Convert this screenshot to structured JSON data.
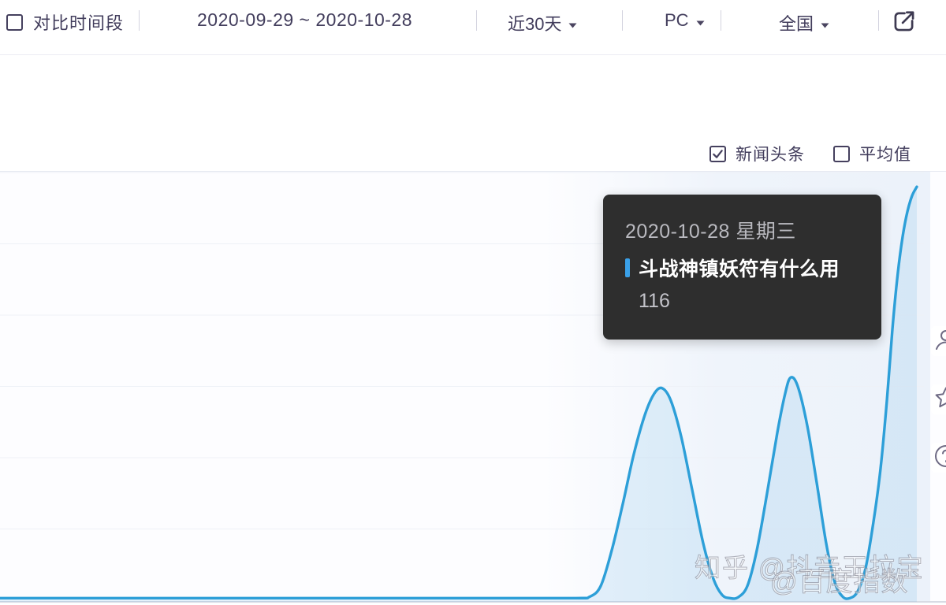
{
  "topbar": {
    "compare_label": "对比时间段",
    "compare_checked": false,
    "date_range": "2020-09-29 ~ 2020-10-28",
    "duration_dropdown": "近30天",
    "platform_dropdown": "PC",
    "region_dropdown": "全国"
  },
  "legend": {
    "news_label": "新闻头条",
    "news_checked": true,
    "average_label": "平均值",
    "average_checked": false
  },
  "tooltip": {
    "date": "2020-10-28 星期三",
    "keyword": "斗战神镇妖符有什么用",
    "value": "116",
    "marker_color": "#3aa0e8"
  },
  "watermarks": {
    "primary": "知乎 @抖音王拉宝",
    "secondary": "@百度指数"
  },
  "colors": {
    "line": "#2d9fd8",
    "area": "rgba(58,160,221,0.13)",
    "grid": "#eef1f7",
    "axis": "#d8dbe4",
    "tint": "rgba(222,233,246,0.55)",
    "tooltip_bg": "#2e2e2e",
    "ui_text": "#423d5c"
  },
  "chart_data": {
    "type": "line",
    "x_range": [
      "2020-09-29",
      "2020-10-28"
    ],
    "x_label": "",
    "y_label": "",
    "ylim": [
      0,
      120
    ],
    "grid_step": 20,
    "grid_on": true,
    "legend_position": "top-right",
    "hovered_point": {
      "date": "2020-10-28 星期三",
      "series": "斗战神镇妖符有什么用",
      "value": 116
    },
    "series": [
      {
        "name": "斗战神镇妖符有什么用",
        "color": "#2d9fd8",
        "peaks": [
          {
            "approx_date": "2020-10-20",
            "value": 59
          },
          {
            "approx_date": "2020-10-24",
            "value": 63
          },
          {
            "date": "2020-10-28",
            "value": 116
          }
        ],
        "samples": [
          [
            0,
            0.6
          ],
          [
            200,
            0.6
          ],
          [
            420,
            0.6
          ],
          [
            620,
            0.6
          ],
          [
            730,
            0.6
          ],
          [
            748,
            1
          ],
          [
            762,
            4
          ],
          [
            776,
            14
          ],
          [
            790,
            27
          ],
          [
            804,
            41
          ],
          [
            818,
            52
          ],
          [
            830,
            58
          ],
          [
            840,
            59.5
          ],
          [
            851,
            56
          ],
          [
            864,
            46
          ],
          [
            878,
            31
          ],
          [
            892,
            16
          ],
          [
            905,
            6
          ],
          [
            916,
            1.5
          ],
          [
            926,
            0.6
          ],
          [
            936,
            0.8
          ],
          [
            948,
            4
          ],
          [
            960,
            14
          ],
          [
            973,
            30
          ],
          [
            986,
            47
          ],
          [
            996,
            58
          ],
          [
            1003,
            62.5
          ],
          [
            1012,
            60
          ],
          [
            1024,
            49
          ],
          [
            1036,
            33
          ],
          [
            1048,
            16
          ],
          [
            1059,
            5
          ],
          [
            1069,
            1
          ],
          [
            1078,
            0.6
          ],
          [
            1088,
            2.5
          ],
          [
            1098,
            9
          ],
          [
            1108,
            22
          ],
          [
            1117,
            37
          ],
          [
            1125,
            56
          ],
          [
            1132,
            76
          ],
          [
            1139,
            92
          ],
          [
            1145,
            102
          ],
          [
            1151,
            109
          ],
          [
            1157,
            113.5
          ],
          [
            1163,
            116
          ]
        ]
      }
    ]
  }
}
